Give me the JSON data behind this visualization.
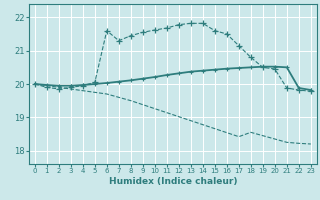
{
  "xlabel": "Humidex (Indice chaleur)",
  "xlim": [
    -0.5,
    23.5
  ],
  "ylim": [
    17.6,
    22.4
  ],
  "yticks": [
    18,
    19,
    20,
    21,
    22
  ],
  "xticks": [
    0,
    1,
    2,
    3,
    4,
    5,
    6,
    7,
    8,
    9,
    10,
    11,
    12,
    13,
    14,
    15,
    16,
    17,
    18,
    19,
    20,
    21,
    22,
    23
  ],
  "bg_color": "#cce8ea",
  "line_color": "#2e7d7d",
  "grid_color": "#ffffff",
  "line1_x": [
    0,
    1,
    2,
    3,
    4,
    5,
    6,
    7,
    8,
    9,
    10,
    11,
    12,
    13,
    14,
    15,
    16,
    17,
    18,
    19,
    20,
    21,
    22,
    23
  ],
  "line1_y": [
    20.0,
    19.9,
    19.85,
    19.9,
    19.95,
    20.05,
    21.6,
    21.3,
    21.45,
    21.55,
    21.62,
    21.68,
    21.78,
    21.82,
    21.82,
    21.6,
    21.5,
    21.15,
    20.8,
    20.5,
    20.45,
    19.88,
    19.82,
    19.78
  ],
  "line2_x": [
    0,
    1,
    2,
    3,
    4,
    5,
    6,
    7,
    8,
    9,
    10,
    11,
    12,
    13,
    14,
    15,
    16,
    17,
    18,
    19,
    20,
    21,
    22,
    23
  ],
  "line2_y": [
    20.0,
    19.97,
    19.95,
    19.95,
    19.97,
    20.0,
    20.03,
    20.07,
    20.11,
    20.16,
    20.21,
    20.27,
    20.32,
    20.37,
    20.4,
    20.43,
    20.46,
    20.48,
    20.5,
    20.52,
    20.52,
    20.5,
    19.88,
    19.82
  ],
  "line3_x": [
    0,
    1,
    2,
    3,
    4,
    5,
    6,
    7,
    8,
    9,
    10,
    11,
    12,
    13,
    14,
    15,
    16,
    17,
    18,
    19,
    20,
    21,
    22,
    23
  ],
  "line3_y": [
    20.0,
    19.95,
    19.9,
    19.85,
    19.8,
    19.75,
    19.7,
    19.6,
    19.5,
    19.38,
    19.26,
    19.14,
    19.02,
    18.9,
    18.78,
    18.66,
    18.54,
    18.42,
    18.55,
    18.45,
    18.35,
    18.25,
    18.22,
    18.2
  ]
}
